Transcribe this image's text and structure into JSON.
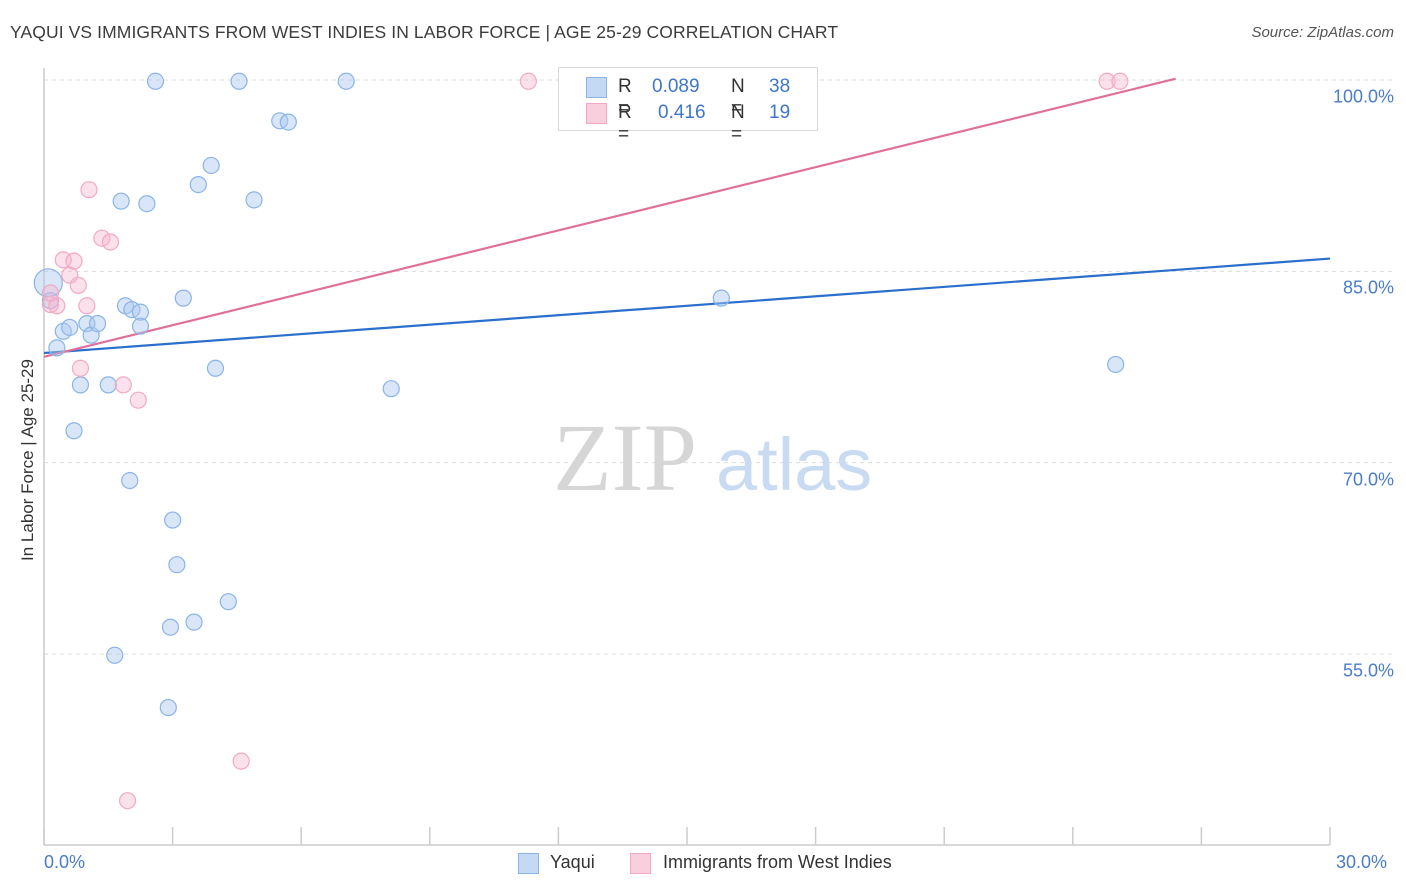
{
  "title": "YAQUI VS IMMIGRANTS FROM WEST INDIES IN LABOR FORCE | AGE 25-29 CORRELATION CHART",
  "source": "Source: ZipAtlas.com",
  "watermark": {
    "zip": "ZIP",
    "atlas": "atlas"
  },
  "legend": {
    "series1": {
      "r_label": "R =",
      "r_value": "0.089",
      "n_label": "N =",
      "n_value": "38"
    },
    "series2": {
      "r_label": "R =",
      "r_value": "0.416",
      "n_label": "N =",
      "n_value": "19"
    }
  },
  "bottom_legend": {
    "series1": "Yaqui",
    "series2": "Immigrants from West Indies"
  },
  "chart_data": {
    "type": "scatter",
    "ylabel": "In Labor Force | Age 25-29",
    "xlabel": "",
    "xlim": [
      0,
      30
    ],
    "ylim": [
      41.5,
      102
    ],
    "x_tick_labels": [
      "0.0%",
      "30.0%"
    ],
    "y_ticks": [
      55,
      70,
      85,
      100
    ],
    "y_tick_labels": [
      "55.0%",
      "70.0%",
      "85.0%",
      "100.0%"
    ],
    "colors": {
      "yaqui": "#8ab4e8",
      "yaqui_line": "#2a6fcc",
      "wi": "#f3a9c3",
      "wi_line": "#e0709a"
    },
    "series": [
      {
        "name": "Yaqui",
        "r": 0.089,
        "n": 38,
        "points": [
          [
            0.1,
            84.1
          ],
          [
            0.15,
            82.7
          ],
          [
            0.3,
            79.0
          ],
          [
            0.45,
            80.3
          ],
          [
            0.6,
            80.6
          ],
          [
            0.7,
            72.5
          ],
          [
            0.85,
            76.1
          ],
          [
            1.0,
            80.9
          ],
          [
            1.1,
            80.0
          ],
          [
            1.25,
            80.9
          ],
          [
            1.5,
            76.1
          ],
          [
            1.65,
            54.9
          ],
          [
            1.8,
            90.5
          ],
          [
            1.9,
            82.3
          ],
          [
            2.0,
            68.6
          ],
          [
            2.05,
            82.0
          ],
          [
            2.25,
            81.8
          ],
          [
            2.25,
            80.7
          ],
          [
            2.4,
            90.3
          ],
          [
            2.6,
            99.9
          ],
          [
            2.9,
            50.8
          ],
          [
            2.95,
            57.1
          ],
          [
            3.0,
            65.5
          ],
          [
            3.1,
            62.0
          ],
          [
            3.25,
            82.9
          ],
          [
            3.5,
            57.5
          ],
          [
            3.6,
            91.8
          ],
          [
            3.9,
            93.3
          ],
          [
            4.0,
            77.4
          ],
          [
            4.3,
            59.1
          ],
          [
            4.55,
            99.9
          ],
          [
            4.9,
            90.6
          ],
          [
            5.5,
            96.8
          ],
          [
            5.7,
            96.7
          ],
          [
            7.05,
            99.9
          ],
          [
            8.1,
            75.8
          ],
          [
            15.8,
            82.9
          ],
          [
            25.0,
            77.7
          ]
        ],
        "trend": {
          "x": [
            0,
            30
          ],
          "y": [
            78.6,
            86.0
          ]
        }
      },
      {
        "name": "Immigrants from West Indies",
        "r": 0.416,
        "n": 19,
        "points": [
          [
            0.15,
            82.4
          ],
          [
            0.3,
            82.3
          ],
          [
            0.45,
            85.9
          ],
          [
            0.6,
            84.7
          ],
          [
            0.7,
            85.8
          ],
          [
            0.8,
            83.9
          ],
          [
            0.85,
            77.4
          ],
          [
            1.0,
            82.3
          ],
          [
            1.05,
            91.4
          ],
          [
            1.35,
            87.6
          ],
          [
            1.55,
            87.3
          ],
          [
            1.85,
            76.1
          ],
          [
            1.95,
            43.5
          ],
          [
            2.2,
            74.9
          ],
          [
            4.6,
            46.6
          ],
          [
            11.3,
            99.9
          ],
          [
            24.8,
            99.9
          ],
          [
            25.1,
            99.9
          ],
          [
            0.15,
            83.3
          ]
        ],
        "trend": {
          "x": [
            0,
            26.4
          ],
          "y": [
            78.3,
            100.1
          ]
        }
      }
    ]
  }
}
